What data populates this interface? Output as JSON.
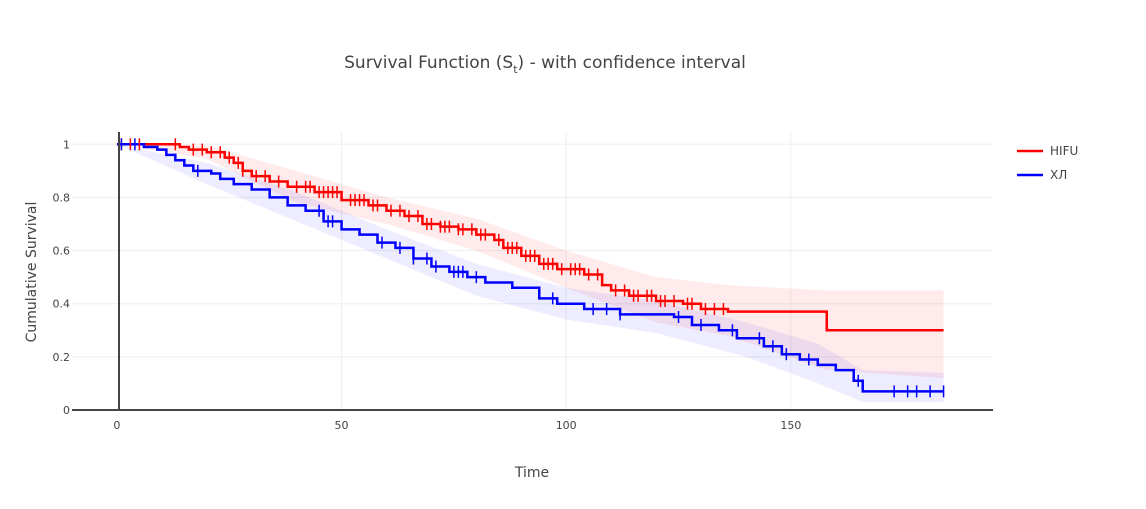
{
  "chart_data": {
    "type": "line",
    "title": "Survival Function (S",
    "title_sub": "t",
    "title_suffix": ") - with confidence interval",
    "xlabel": "Time",
    "ylabel": "Cumulative Survival",
    "xlim": [
      -10,
      195
    ],
    "ylim": [
      0,
      1.05
    ],
    "x_ticks": [
      0,
      50,
      100,
      150
    ],
    "y_ticks": [
      0,
      0.2,
      0.4,
      0.6,
      0.8,
      1
    ],
    "y_tick_labels": [
      "0",
      "0.2",
      "0.4",
      "0.6",
      "0.8",
      "1"
    ],
    "grid": true,
    "legend_position": "top-right",
    "series": [
      {
        "name": "HIFU",
        "color": "#ff0000",
        "band_color": "rgba(255,0,0,0.08)",
        "step": [
          [
            0,
            1
          ],
          [
            12,
            1
          ],
          [
            14,
            0.99
          ],
          [
            16,
            0.98
          ],
          [
            20,
            0.97
          ],
          [
            24,
            0.95
          ],
          [
            26,
            0.93
          ],
          [
            28,
            0.9
          ],
          [
            30,
            0.88
          ],
          [
            34,
            0.86
          ],
          [
            38,
            0.84
          ],
          [
            44,
            0.82
          ],
          [
            50,
            0.79
          ],
          [
            56,
            0.77
          ],
          [
            60,
            0.75
          ],
          [
            64,
            0.73
          ],
          [
            68,
            0.7
          ],
          [
            72,
            0.69
          ],
          [
            76,
            0.68
          ],
          [
            80,
            0.66
          ],
          [
            84,
            0.64
          ],
          [
            86,
            0.61
          ],
          [
            90,
            0.58
          ],
          [
            94,
            0.55
          ],
          [
            98,
            0.53
          ],
          [
            104,
            0.51
          ],
          [
            108,
            0.47
          ],
          [
            110,
            0.45
          ],
          [
            114,
            0.43
          ],
          [
            120,
            0.41
          ],
          [
            126,
            0.4
          ],
          [
            130,
            0.38
          ],
          [
            136,
            0.37
          ],
          [
            158,
            0.3
          ],
          [
            184,
            0.3
          ]
        ],
        "band": [
          [
            0,
            1,
            1
          ],
          [
            20,
            0.995,
            0.945
          ],
          [
            40,
            0.9,
            0.78
          ],
          [
            60,
            0.8,
            0.7
          ],
          [
            80,
            0.72,
            0.6
          ],
          [
            100,
            0.6,
            0.46
          ],
          [
            120,
            0.5,
            0.33
          ],
          [
            136,
            0.47,
            0.28
          ],
          [
            158,
            0.45,
            0.15
          ],
          [
            184,
            0.45,
            0.12
          ]
        ],
        "censor": [
          1,
          3,
          5,
          13,
          17,
          19,
          21,
          23,
          25,
          27,
          28,
          31,
          33,
          36,
          40,
          42,
          43,
          45,
          46,
          47,
          48,
          49,
          52,
          53,
          54,
          55,
          57,
          58,
          61,
          63,
          65,
          67,
          69,
          70,
          72,
          73,
          74,
          76,
          77,
          79,
          81,
          82,
          85,
          87,
          88,
          89,
          91,
          92,
          93,
          95,
          96,
          97,
          99,
          101,
          102,
          103,
          105,
          107,
          111,
          113,
          115,
          116,
          118,
          119,
          121,
          122,
          124,
          127,
          128,
          131,
          133,
          135
        ]
      },
      {
        "name": "ХЛ",
        "color": "#0000ff",
        "band_color": "rgba(0,0,255,0.07)",
        "step": [
          [
            0,
            1
          ],
          [
            6,
            0.99
          ],
          [
            9,
            0.98
          ],
          [
            11,
            0.96
          ],
          [
            13,
            0.94
          ],
          [
            15,
            0.92
          ],
          [
            17,
            0.9
          ],
          [
            21,
            0.89
          ],
          [
            23,
            0.87
          ],
          [
            26,
            0.85
          ],
          [
            30,
            0.83
          ],
          [
            34,
            0.8
          ],
          [
            38,
            0.77
          ],
          [
            42,
            0.75
          ],
          [
            46,
            0.71
          ],
          [
            50,
            0.68
          ],
          [
            54,
            0.66
          ],
          [
            58,
            0.63
          ],
          [
            62,
            0.61
          ],
          [
            66,
            0.57
          ],
          [
            70,
            0.54
          ],
          [
            74,
            0.52
          ],
          [
            78,
            0.5
          ],
          [
            82,
            0.48
          ],
          [
            88,
            0.46
          ],
          [
            94,
            0.42
          ],
          [
            98,
            0.4
          ],
          [
            104,
            0.38
          ],
          [
            112,
            0.36
          ],
          [
            124,
            0.35
          ],
          [
            128,
            0.32
          ],
          [
            134,
            0.3
          ],
          [
            138,
            0.27
          ],
          [
            144,
            0.24
          ],
          [
            148,
            0.21
          ],
          [
            152,
            0.19
          ],
          [
            156,
            0.17
          ],
          [
            160,
            0.15
          ],
          [
            164,
            0.11
          ],
          [
            166,
            0.07
          ],
          [
            184,
            0.07
          ]
        ],
        "band": [
          [
            0,
            1,
            1
          ],
          [
            20,
            0.93,
            0.85
          ],
          [
            40,
            0.82,
            0.71
          ],
          [
            60,
            0.68,
            0.57
          ],
          [
            80,
            0.55,
            0.43
          ],
          [
            100,
            0.46,
            0.34
          ],
          [
            120,
            0.41,
            0.29
          ],
          [
            140,
            0.33,
            0.2
          ],
          [
            156,
            0.25,
            0.1
          ],
          [
            166,
            0.15,
            0.03
          ],
          [
            184,
            0.14,
            0.03
          ]
        ],
        "censor": [
          1,
          4,
          18,
          45,
          47,
          48,
          59,
          63,
          66,
          69,
          71,
          75,
          76,
          77,
          80,
          97,
          106,
          109,
          112,
          125,
          130,
          137,
          143,
          146,
          149,
          154,
          165,
          173,
          176,
          178,
          181,
          184
        ]
      }
    ]
  }
}
